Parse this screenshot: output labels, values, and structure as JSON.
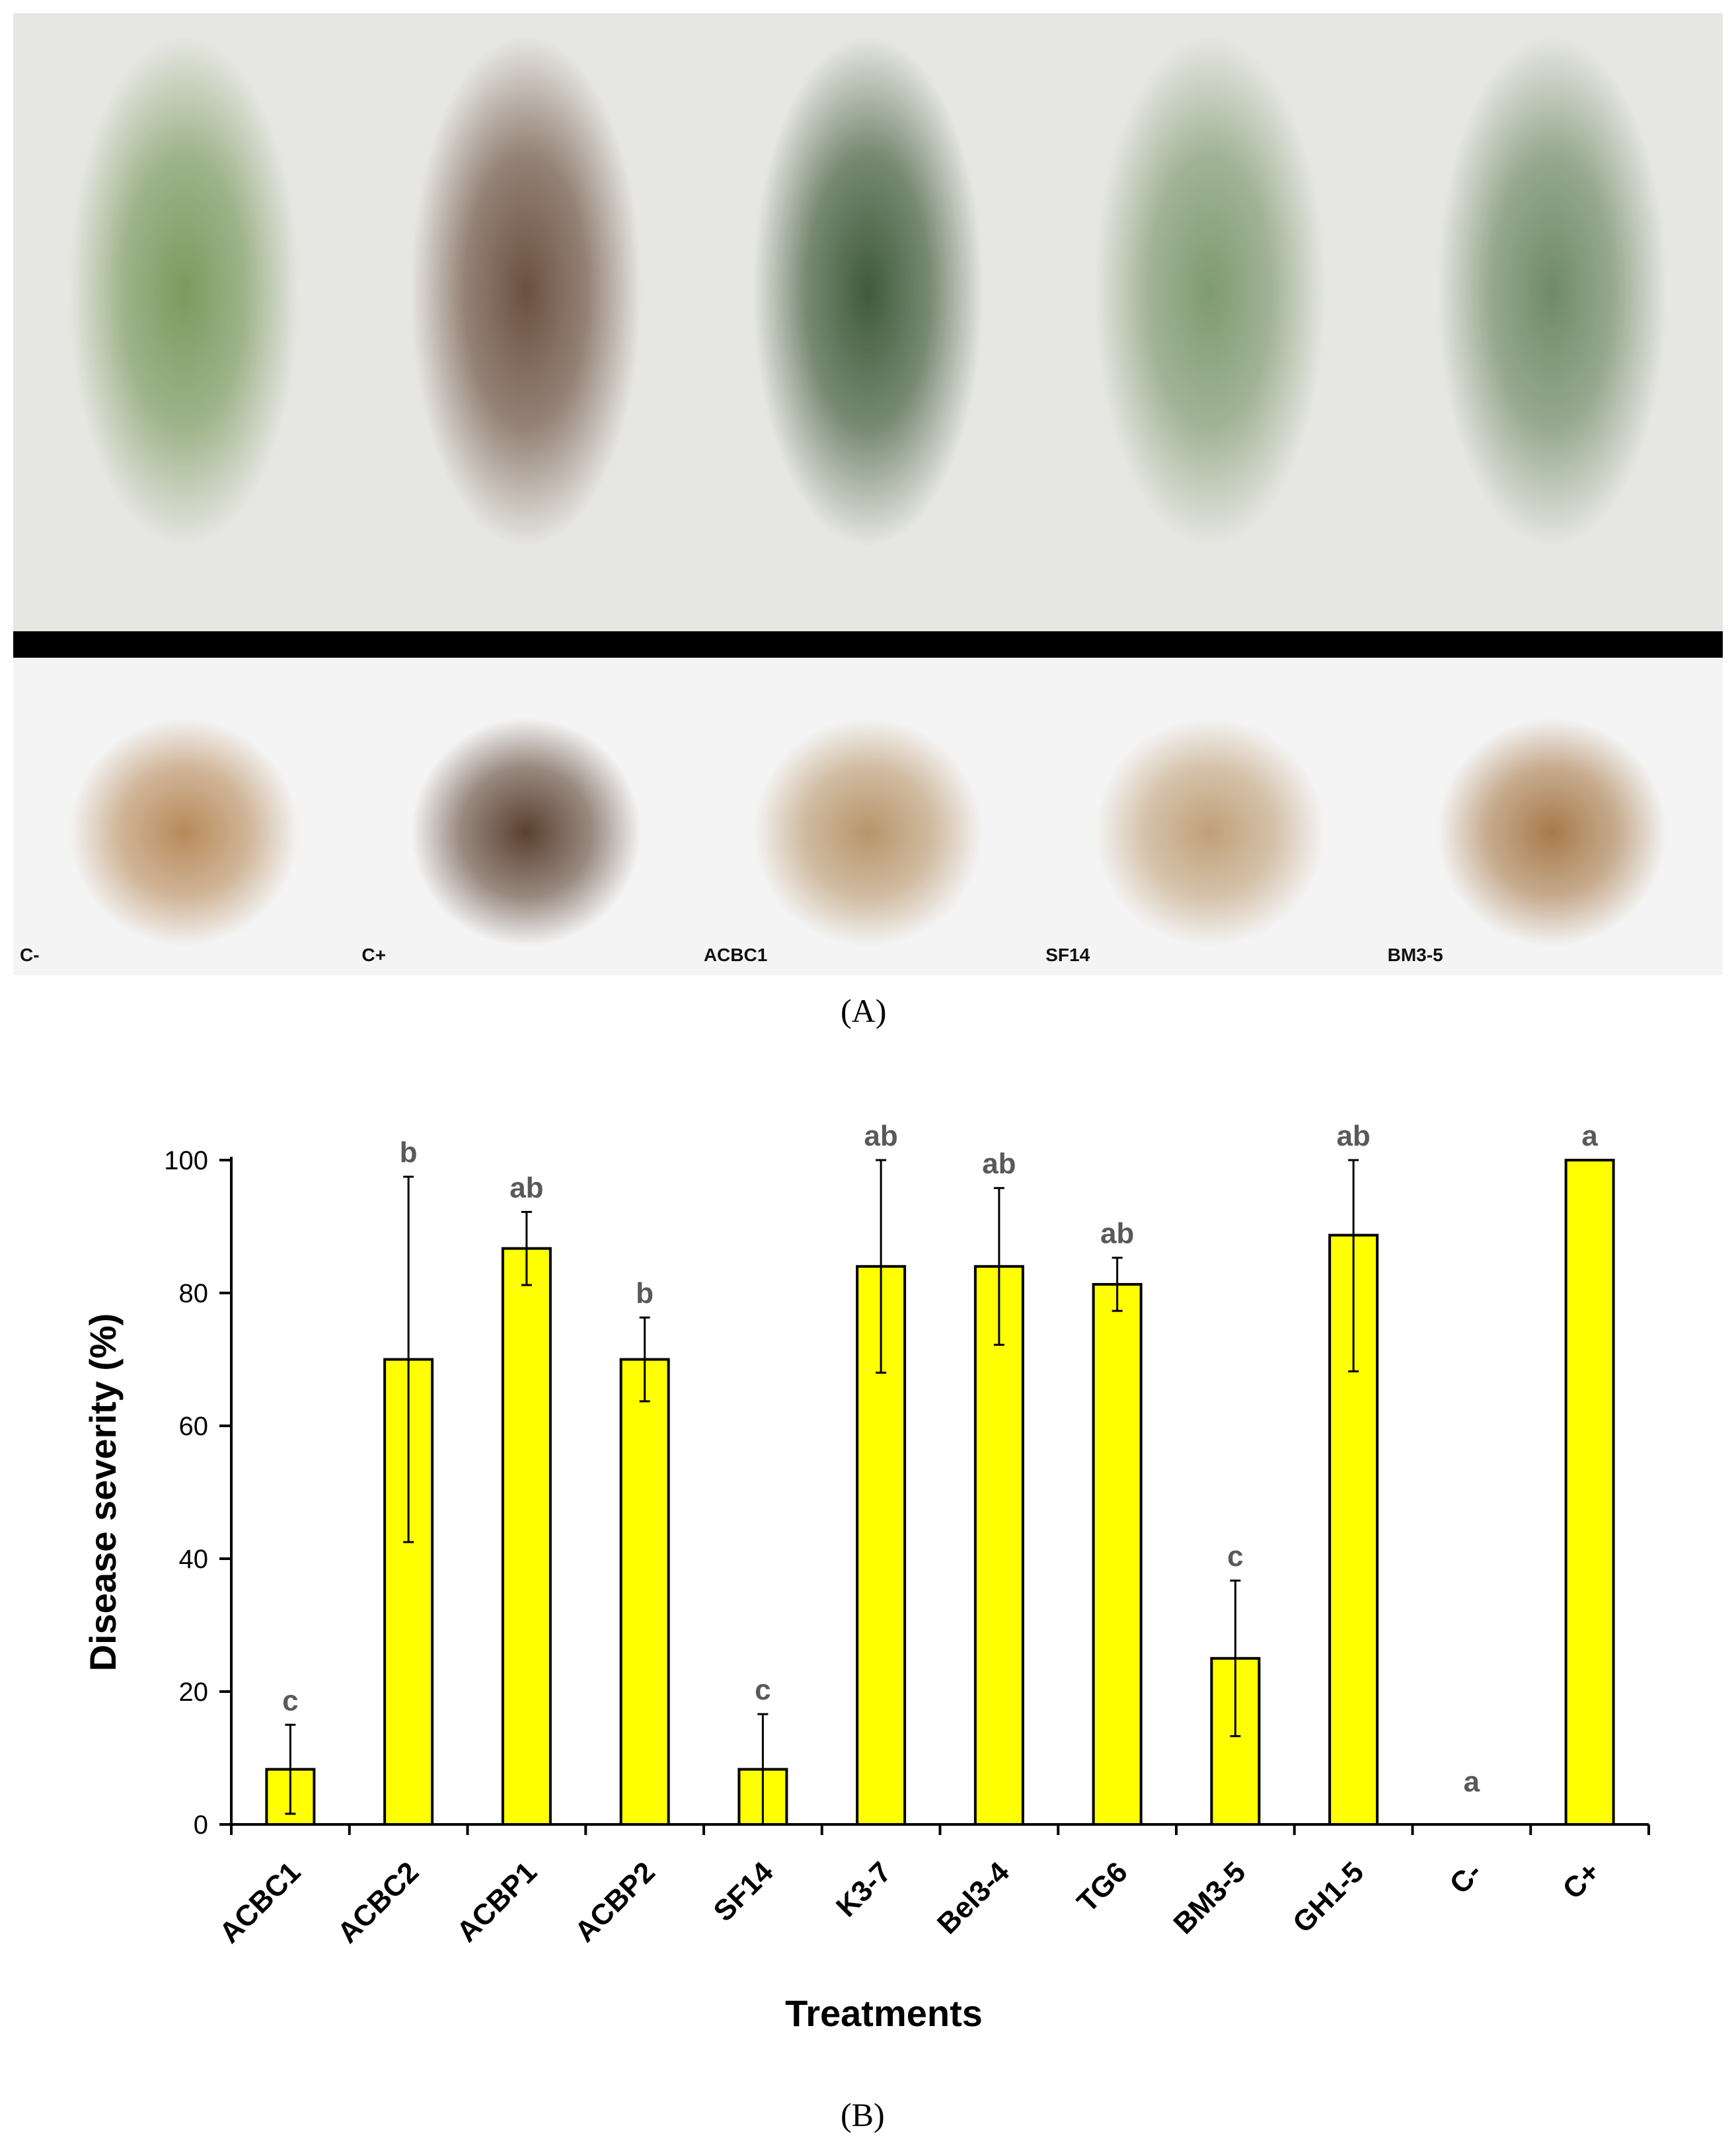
{
  "figure": {
    "panel_a_caption": "(A)",
    "panel_b_caption": "(B)"
  },
  "photos": [
    {
      "label": "C-",
      "shoot_color": "#7a9a5e",
      "root_color": "#b88a5a"
    },
    {
      "label": "C+",
      "shoot_color": "#6b5040",
      "root_color": "#5a4030"
    },
    {
      "label": "ACBC1",
      "shoot_color": "#3f5a3a",
      "root_color": "#b8956a"
    },
    {
      "label": "SF14",
      "shoot_color": "#7f9a70",
      "root_color": "#c0a078"
    },
    {
      "label": "BM3-5",
      "shoot_color": "#6f8a66",
      "root_color": "#a87a4a"
    }
  ],
  "colors": {
    "bar_fill": "#ffff00",
    "bar_stroke": "#000000",
    "significance_text": "#595959"
  },
  "chart_data": {
    "type": "bar",
    "title": "",
    "xlabel": "Treatments",
    "ylabel": "Disease severity (%)",
    "ylim": [
      0,
      100
    ],
    "yticks": [
      0,
      20,
      40,
      60,
      80,
      100
    ],
    "grid": false,
    "legend": "none",
    "categories": [
      "ACBC1",
      "ACBC2",
      "ACBP1",
      "ACBP2",
      "SF14",
      "K3-7",
      "Bel3-4",
      "TG6",
      "BM3-5",
      "GH1-5",
      "C-",
      "C+"
    ],
    "values": [
      8.3,
      70,
      86.7,
      70,
      8.3,
      84,
      84,
      81.3,
      25,
      88.7,
      0,
      100
    ],
    "errors": [
      6.7,
      27.5,
      5.5,
      6.3,
      8.3,
      16,
      11.8,
      4,
      11.7,
      20.5,
      0,
      0
    ],
    "significance": [
      "c",
      "b",
      "ab",
      "b",
      "c",
      "ab",
      "ab",
      "ab",
      "c",
      "ab",
      "a",
      "a"
    ]
  }
}
